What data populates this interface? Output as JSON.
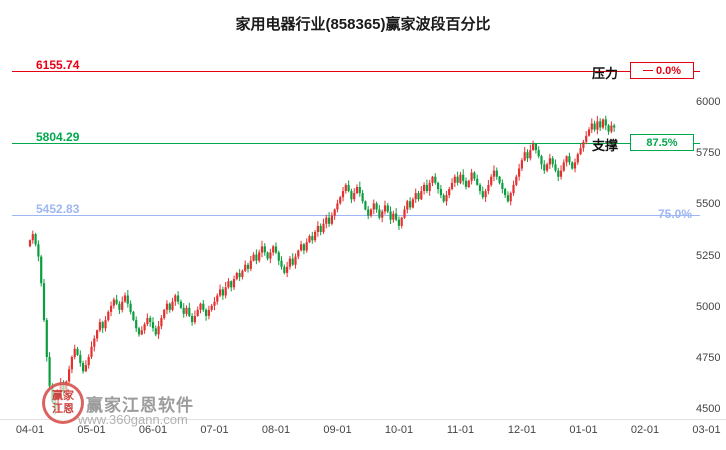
{
  "header": {
    "title": "家用电器行业(858365)赢家波段百分比"
  },
  "watermark": {
    "logo_line1": "赢家",
    "logo_line2": "江恩",
    "brand": "赢家江恩软件",
    "url": "www.360gann.com"
  },
  "chart_data": {
    "type": "candlestick",
    "title": "家用电器行业(858365)赢家波段百分比",
    "x_ticks": [
      "04-01",
      "05-01",
      "06-01",
      "07-01",
      "08-01",
      "09-01",
      "10-01",
      "11-01",
      "12-01",
      "01-01",
      "02-01",
      "03-01"
    ],
    "y_ticks": [
      6000,
      5750,
      5500,
      5250,
      5000,
      4750,
      4500
    ],
    "ylim": [
      4450,
      6220
    ],
    "grid": false,
    "legend": "none",
    "up_color": "#e53030",
    "down_color": "#0b9e3e",
    "levels": [
      {
        "role": "resistance",
        "name": "压力",
        "value": 6155.74,
        "percent": "0.0%",
        "color": "#e60012"
      },
      {
        "role": "support",
        "name": "支撑",
        "value": 5804.29,
        "percent": "87.5%",
        "color": "#00a84c"
      },
      {
        "role": "band",
        "name": "",
        "value": 5452.83,
        "percent": "75.0%",
        "color": "#9db7f5"
      }
    ],
    "first_open": 5300,
    "closes": [
      5330,
      5360,
      5310,
      5250,
      5120,
      4940,
      4760,
      4620,
      4540,
      4500,
      4560,
      4630,
      4590,
      4640,
      4700,
      4760,
      4800,
      4770,
      4730,
      4690,
      4720,
      4760,
      4810,
      4850,
      4890,
      4930,
      4900,
      4940,
      4980,
      5010,
      5040,
      5020,
      4990,
      5030,
      5060,
      5020,
      4980,
      4940,
      4900,
      4870,
      4890,
      4920,
      4950,
      4930,
      4900,
      4870,
      4910,
      4950,
      4990,
      5020,
      4990,
      5030,
      5060,
      5030,
      5000,
      4970,
      5000,
      4960,
      4930,
      4960,
      4990,
      5020,
      4990,
      4960,
      4990,
      5010,
      5030,
      5060,
      5090,
      5060,
      5100,
      5130,
      5100,
      5140,
      5170,
      5150,
      5180,
      5210,
      5190,
      5230,
      5260,
      5230,
      5270,
      5300,
      5270,
      5240,
      5270,
      5300,
      5270,
      5230,
      5200,
      5170,
      5200,
      5240,
      5210,
      5250,
      5280,
      5310,
      5280,
      5320,
      5350,
      5330,
      5370,
      5400,
      5370,
      5410,
      5440,
      5410,
      5450,
      5480,
      5510,
      5540,
      5570,
      5600,
      5570,
      5530,
      5560,
      5590,
      5560,
      5520,
      5480,
      5450,
      5480,
      5510,
      5480,
      5440,
      5470,
      5500,
      5470,
      5430,
      5460,
      5430,
      5400,
      5440,
      5480,
      5520,
      5490,
      5530,
      5560,
      5530,
      5570,
      5600,
      5570,
      5610,
      5640,
      5610,
      5580,
      5550,
      5520,
      5550,
      5580,
      5610,
      5640,
      5610,
      5650,
      5620,
      5590,
      5620,
      5660,
      5630,
      5600,
      5570,
      5540,
      5570,
      5600,
      5640,
      5670,
      5640,
      5610,
      5580,
      5550,
      5520,
      5560,
      5600,
      5640,
      5680,
      5720,
      5760,
      5730,
      5770,
      5800,
      5770,
      5740,
      5700,
      5670,
      5700,
      5730,
      5700,
      5670,
      5640,
      5670,
      5710,
      5740,
      5710,
      5680,
      5710,
      5750,
      5780,
      5810,
      5840,
      5870,
      5900,
      5870,
      5910,
      5880,
      5920,
      5890,
      5860,
      5890,
      5880
    ]
  }
}
